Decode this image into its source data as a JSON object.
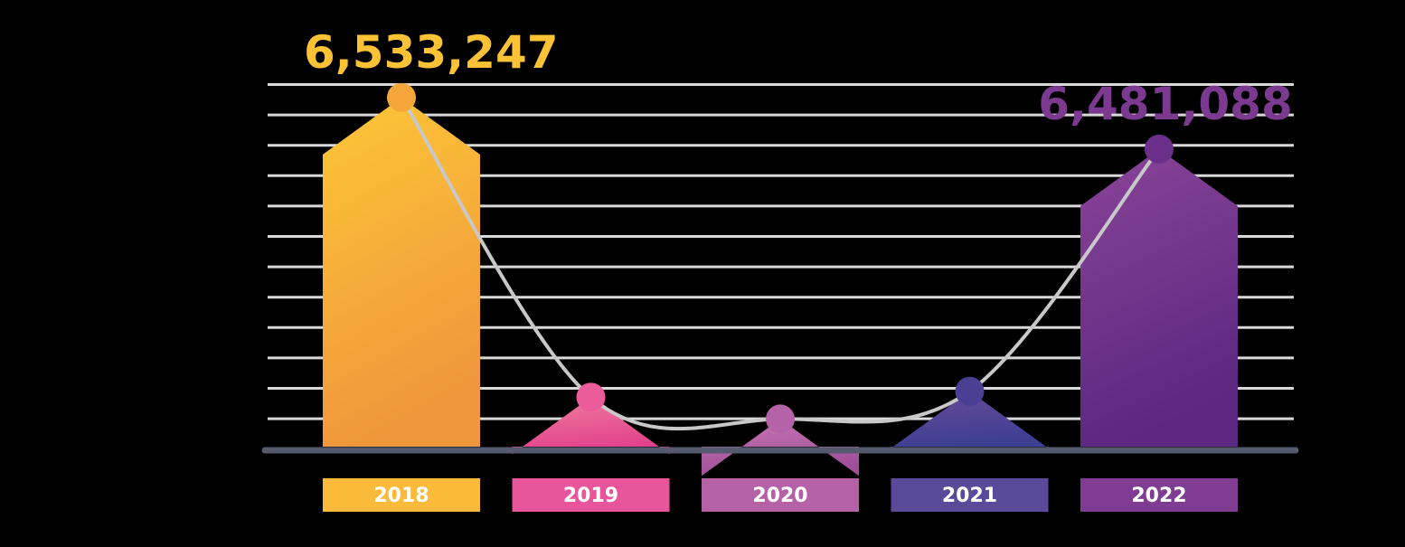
{
  "chart_data": {
    "type": "bar",
    "categories": [
      "2018",
      "2019",
      "2020",
      "2021",
      "2022"
    ],
    "values": [
      6533247,
      6230000,
      6208000,
      6236000,
      6481088
    ],
    "data_labels": [
      {
        "category": "2018",
        "text": "6,533,247",
        "color": "#fcc235"
      },
      {
        "category": "2022",
        "text": "6,481,088",
        "color": "#7b3a8f"
      }
    ],
    "title": "",
    "xlabel": "",
    "ylabel": "",
    "ylim": [
      6180000,
      6545000
    ],
    "grid": true,
    "legend": "none",
    "trend_line": true
  },
  "colors": {
    "background": "#000000",
    "grid": "#d9d9d9",
    "axis": "#555a6e",
    "trend_line": "#c8c8c8",
    "bars": [
      {
        "top": "#fdc737",
        "bottom": "#f0963c",
        "label_bg": "#fbba3a",
        "dot": "#f5a63b"
      },
      {
        "top": "#f07ea0",
        "bottom": "#e2418b",
        "label_bg": "#e9559b",
        "dot": "#ea5c9a"
      },
      {
        "top": "#c879b3",
        "bottom": "#a04e99",
        "label_bg": "#b561a5",
        "dot": "#b463a8"
      },
      {
        "top": "#6a4a99",
        "bottom": "#3e3f92",
        "label_bg": "#5a4a99",
        "dot": "#4a3f92"
      },
      {
        "top": "#8a4498",
        "bottom": "#5b2780",
        "label_bg": "#7f3c92",
        "dot": "#6a2f88"
      }
    ]
  }
}
